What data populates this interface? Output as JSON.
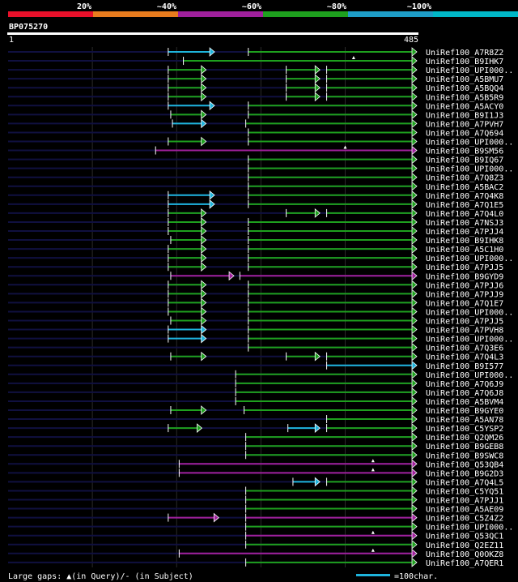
{
  "chart_data": {
    "type": "alignment",
    "legend_bands": [
      {
        "label": "",
        "color": "#e8102a"
      },
      {
        "label": "20%",
        "color": "#e87c1e"
      },
      {
        "label": "~40%",
        "color": "#a0209c"
      },
      {
        "label": "~60%",
        "color": "#1ea01e"
      },
      {
        "label": "~80%",
        "color": "#1e9ec8"
      },
      {
        "label": "~100%",
        "color": "#00b8c8"
      }
    ],
    "query_name": "BP075270",
    "query_start": "1",
    "query_end": "485",
    "query_length": 485,
    "scale_char_per_bar": 100,
    "footer_gaps": "Large gaps: ▲(in Query)/- (in Subject)",
    "footer_scale": "=100char.",
    "colors": {
      "green": "#1ea01e",
      "cyan": "#1eb4dc",
      "magenta": "#a0209c",
      "navy": "#101040"
    },
    "hits": [
      {
        "name": "UniRef100_A7R8Z2",
        "segs": [
          [
            190,
            245,
            "cyan"
          ],
          [
            285,
            485,
            "green"
          ]
        ],
        "marks": []
      },
      {
        "name": "UniRef100_B9IHK7",
        "segs": [
          [
            208,
            485,
            "green"
          ]
        ],
        "marks": [
          410
        ]
      },
      {
        "name": "UniRef100_UPI000..",
        "segs": [
          [
            190,
            235,
            "green"
          ],
          [
            330,
            370,
            "green"
          ],
          [
            378,
            485,
            "green"
          ]
        ],
        "marks": []
      },
      {
        "name": "UniRef100_A5BMU7",
        "segs": [
          [
            190,
            235,
            "green"
          ],
          [
            330,
            370,
            "green"
          ],
          [
            378,
            485,
            "green"
          ]
        ],
        "marks": []
      },
      {
        "name": "UniRef100_A5BQQ4",
        "segs": [
          [
            190,
            235,
            "green"
          ],
          [
            330,
            370,
            "green"
          ],
          [
            378,
            485,
            "green"
          ]
        ],
        "marks": []
      },
      {
        "name": "UniRef100_A5B5R9",
        "segs": [
          [
            190,
            235,
            "green"
          ],
          [
            330,
            370,
            "green"
          ],
          [
            378,
            485,
            "green"
          ]
        ],
        "marks": []
      },
      {
        "name": "UniRef100_A5ACY0",
        "segs": [
          [
            190,
            245,
            "cyan"
          ],
          [
            285,
            485,
            "green"
          ]
        ],
        "marks": []
      },
      {
        "name": "UniRef100_B9I1J3",
        "segs": [
          [
            193,
            235,
            "green"
          ],
          [
            285,
            485,
            "green"
          ]
        ],
        "marks": []
      },
      {
        "name": "UniRef100_A7PVH7",
        "segs": [
          [
            195,
            235,
            "cyan"
          ],
          [
            282,
            485,
            "green"
          ]
        ],
        "marks": []
      },
      {
        "name": "UniRef100_A7Q694",
        "segs": [
          [
            285,
            485,
            "green"
          ]
        ],
        "marks": []
      },
      {
        "name": "UniRef100_UPI000..",
        "segs": [
          [
            190,
            235,
            "green"
          ],
          [
            285,
            485,
            "green"
          ]
        ],
        "marks": []
      },
      {
        "name": "UniRef100_B9SM56",
        "segs": [
          [
            175,
            485,
            "magenta"
          ]
        ],
        "marks": [
          400
        ]
      },
      {
        "name": "UniRef100_B9IQ67",
        "segs": [
          [
            285,
            485,
            "green"
          ]
        ],
        "marks": []
      },
      {
        "name": "UniRef100_UPI000..",
        "segs": [
          [
            285,
            485,
            "green"
          ]
        ],
        "marks": []
      },
      {
        "name": "UniRef100_A7Q8Z3",
        "segs": [
          [
            285,
            485,
            "green"
          ]
        ],
        "marks": []
      },
      {
        "name": "UniRef100_A5BAC2",
        "segs": [
          [
            285,
            485,
            "green"
          ]
        ],
        "marks": []
      },
      {
        "name": "UniRef100_A7Q4K8",
        "segs": [
          [
            190,
            245,
            "cyan"
          ],
          [
            285,
            485,
            "green"
          ]
        ],
        "marks": []
      },
      {
        "name": "UniRef100_A7Q1E5",
        "segs": [
          [
            190,
            245,
            "cyan"
          ],
          [
            285,
            485,
            "green"
          ]
        ],
        "marks": []
      },
      {
        "name": "UniRef100_A7Q4L0",
        "segs": [
          [
            190,
            235,
            "green"
          ],
          [
            330,
            370,
            "green"
          ],
          [
            378,
            485,
            "green"
          ]
        ],
        "marks": []
      },
      {
        "name": "UniRef100_A7NSJ3",
        "segs": [
          [
            190,
            235,
            "green"
          ],
          [
            285,
            485,
            "green"
          ]
        ],
        "marks": []
      },
      {
        "name": "UniRef100_A7PJJ4",
        "segs": [
          [
            190,
            235,
            "green"
          ],
          [
            285,
            485,
            "green"
          ]
        ],
        "marks": []
      },
      {
        "name": "UniRef100_B9IHK8",
        "segs": [
          [
            193,
            235,
            "green"
          ],
          [
            285,
            485,
            "green"
          ]
        ],
        "marks": []
      },
      {
        "name": "UniRef100_A5C1H0",
        "segs": [
          [
            190,
            235,
            "green"
          ],
          [
            285,
            485,
            "green"
          ]
        ],
        "marks": []
      },
      {
        "name": "UniRef100_UPI000..",
        "segs": [
          [
            190,
            235,
            "green"
          ],
          [
            285,
            485,
            "green"
          ]
        ],
        "marks": []
      },
      {
        "name": "UniRef100_A7PJJ5",
        "segs": [
          [
            190,
            235,
            "green"
          ],
          [
            285,
            485,
            "green"
          ]
        ],
        "marks": []
      },
      {
        "name": "UniRef100_B9GYD9",
        "segs": [
          [
            193,
            268,
            "magenta"
          ],
          [
            275,
            485,
            "magenta"
          ]
        ],
        "marks": []
      },
      {
        "name": "UniRef100_A7PJJ6",
        "segs": [
          [
            190,
            235,
            "green"
          ],
          [
            285,
            485,
            "green"
          ]
        ],
        "marks": []
      },
      {
        "name": "UniRef100_A7PJJ9",
        "segs": [
          [
            190,
            235,
            "green"
          ],
          [
            285,
            485,
            "green"
          ]
        ],
        "marks": []
      },
      {
        "name": "UniRef100_A7Q1E7",
        "segs": [
          [
            190,
            235,
            "green"
          ],
          [
            285,
            485,
            "green"
          ]
        ],
        "marks": []
      },
      {
        "name": "UniRef100_UPI000..",
        "segs": [
          [
            190,
            235,
            "green"
          ],
          [
            285,
            485,
            "green"
          ]
        ],
        "marks": []
      },
      {
        "name": "UniRef100_A7PJJ5",
        "segs": [
          [
            193,
            235,
            "green"
          ],
          [
            285,
            485,
            "green"
          ]
        ],
        "marks": []
      },
      {
        "name": "UniRef100_A7PVH8",
        "segs": [
          [
            190,
            235,
            "cyan"
          ],
          [
            285,
            485,
            "green"
          ]
        ],
        "marks": []
      },
      {
        "name": "UniRef100_UPI000..",
        "segs": [
          [
            190,
            235,
            "cyan"
          ],
          [
            285,
            485,
            "green"
          ]
        ],
        "marks": []
      },
      {
        "name": "UniRef100_A7Q3E6",
        "segs": [
          [
            285,
            485,
            "green"
          ]
        ],
        "marks": []
      },
      {
        "name": "UniRef100_A7Q4L3",
        "segs": [
          [
            193,
            235,
            "green"
          ],
          [
            330,
            370,
            "green"
          ],
          [
            378,
            485,
            "green"
          ]
        ],
        "marks": []
      },
      {
        "name": "UniRef100_B9I577",
        "segs": [
          [
            378,
            485,
            "cyan"
          ]
        ],
        "marks": []
      },
      {
        "name": "UniRef100_UPI000..",
        "segs": [
          [
            270,
            485,
            "green"
          ]
        ],
        "marks": []
      },
      {
        "name": "UniRef100_A7Q6J9",
        "segs": [
          [
            270,
            485,
            "green"
          ]
        ],
        "marks": []
      },
      {
        "name": "UniRef100_A7Q6J8",
        "segs": [
          [
            270,
            485,
            "green"
          ]
        ],
        "marks": []
      },
      {
        "name": "UniRef100_A5BVM4",
        "segs": [
          [
            270,
            485,
            "green"
          ]
        ],
        "marks": []
      },
      {
        "name": "UniRef100_B9GYE0",
        "segs": [
          [
            193,
            235,
            "green"
          ],
          [
            280,
            485,
            "green"
          ]
        ],
        "marks": []
      },
      {
        "name": "UniRef100_A5AN78",
        "segs": [
          [
            378,
            485,
            "green"
          ]
        ],
        "marks": []
      },
      {
        "name": "UniRef100_C5YSP2",
        "segs": [
          [
            190,
            230,
            "green"
          ],
          [
            332,
            370,
            "cyan"
          ],
          [
            378,
            485,
            "green"
          ]
        ],
        "marks": []
      },
      {
        "name": "UniRef100_Q2QM26",
        "segs": [
          [
            282,
            485,
            "green"
          ]
        ],
        "marks": []
      },
      {
        "name": "UniRef100_B9GEB8",
        "segs": [
          [
            282,
            485,
            "green"
          ]
        ],
        "marks": []
      },
      {
        "name": "UniRef100_B9SWC8",
        "segs": [
          [
            282,
            485,
            "green"
          ]
        ],
        "marks": []
      },
      {
        "name": "UniRef100_Q53QB4",
        "segs": [
          [
            203,
            485,
            "magenta"
          ]
        ],
        "marks": [
          433
        ]
      },
      {
        "name": "UniRef100_B9G2D3",
        "segs": [
          [
            203,
            485,
            "magenta"
          ]
        ],
        "marks": [
          433
        ]
      },
      {
        "name": "UniRef100_A7Q4L5",
        "segs": [
          [
            338,
            370,
            "cyan"
          ],
          [
            378,
            485,
            "green"
          ]
        ],
        "marks": []
      },
      {
        "name": "UniRef100_C5YQ51",
        "segs": [
          [
            282,
            485,
            "green"
          ]
        ],
        "marks": []
      },
      {
        "name": "UniRef100_A7PJJ1",
        "segs": [
          [
            282,
            485,
            "green"
          ]
        ],
        "marks": []
      },
      {
        "name": "UniRef100_A5AE09",
        "segs": [
          [
            282,
            485,
            "green"
          ]
        ],
        "marks": []
      },
      {
        "name": "UniRef100_C5Z4Z2",
        "segs": [
          [
            190,
            250,
            "magenta"
          ],
          [
            282,
            485,
            "magenta"
          ]
        ],
        "marks": []
      },
      {
        "name": "UniRef100_UPI000..",
        "segs": [
          [
            282,
            485,
            "green"
          ]
        ],
        "marks": []
      },
      {
        "name": "UniRef100_Q53QC1",
        "segs": [
          [
            282,
            485,
            "magenta"
          ]
        ],
        "marks": [
          433
        ]
      },
      {
        "name": "UniRef100_Q2EZ11",
        "segs": [
          [
            282,
            485,
            "green"
          ]
        ],
        "marks": []
      },
      {
        "name": "UniRef100_Q0OKZ8",
        "segs": [
          [
            203,
            485,
            "magenta"
          ]
        ],
        "marks": [
          433
        ]
      },
      {
        "name": "UniRef100_A7QER1",
        "segs": [
          [
            282,
            485,
            "green"
          ]
        ],
        "marks": []
      }
    ]
  }
}
